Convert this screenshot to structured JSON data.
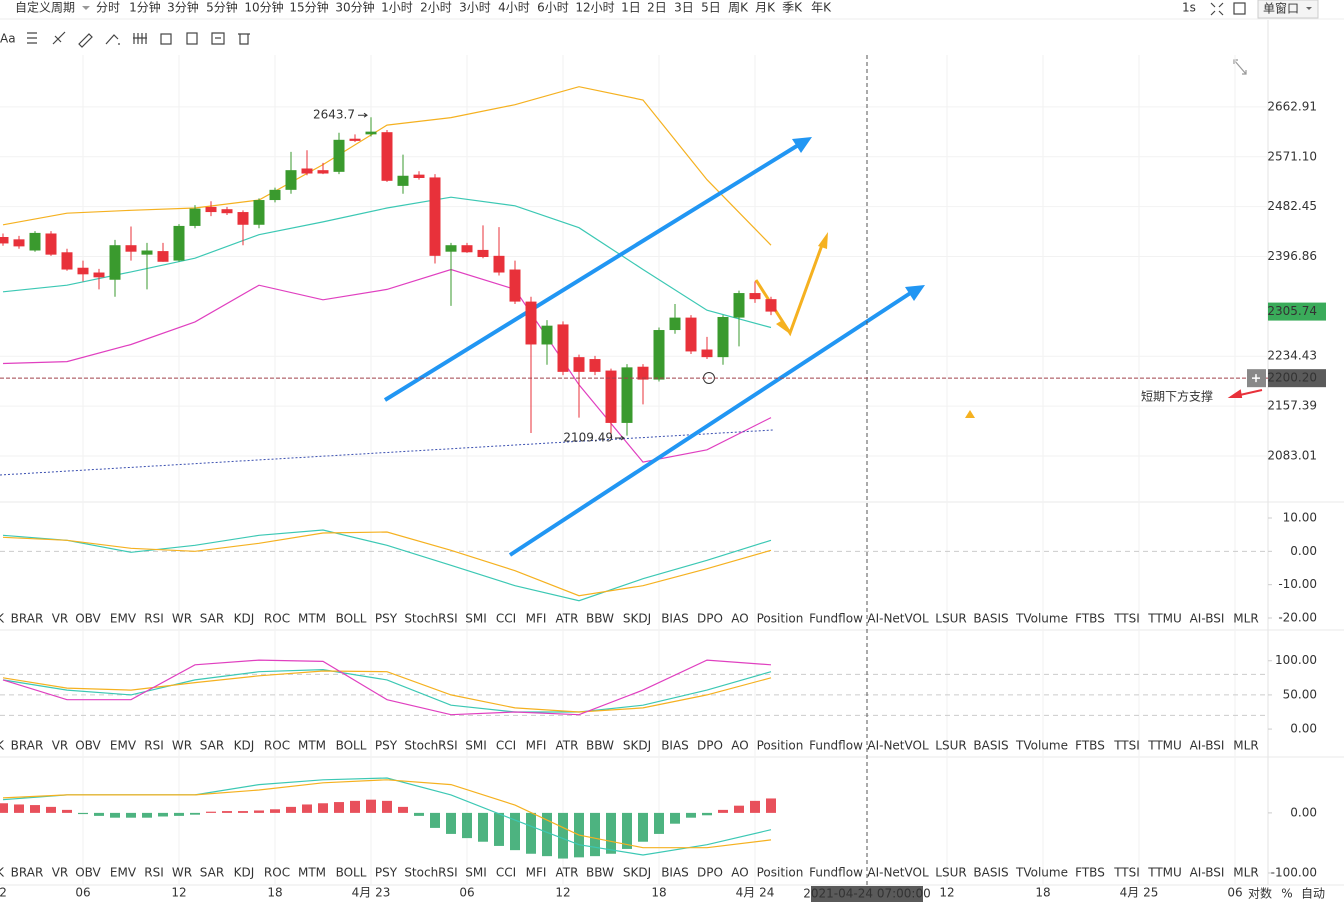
{
  "toolbar": {
    "custom_period": "自定义周期",
    "periods": [
      "分时",
      "1分钟",
      "3分钟",
      "5分钟",
      "10分钟",
      "15分钟",
      "30分钟",
      "1小时",
      "2小时",
      "3小时",
      "4小时",
      "6小时",
      "12小时",
      "1日",
      "2日",
      "3日",
      "5日",
      "周K",
      "月K",
      "季K",
      "年K"
    ],
    "active_period": "1小时",
    "interval": "1s",
    "window": "单窗口",
    "text_tool": "Aa"
  },
  "indicator_tabs": [
    "K",
    "BRAR",
    "VR",
    "OBV",
    "EMV",
    "RSI",
    "WR",
    "SAR",
    "KDJ",
    "ROC",
    "MTM",
    "BOLL",
    "PSY",
    "StochRSI",
    "SMI",
    "CCI",
    "MFI",
    "ATR",
    "BBW",
    "SKDJ",
    "BIAS",
    "DPO",
    "AO",
    "Position",
    "Fundflow",
    "AI-NetVOL",
    "LSUR",
    "BASIS",
    "TVolume",
    "FTBS",
    "TTSI",
    "TTMU",
    "AI-BSI",
    "MLR"
  ],
  "muted_tabs": [
    "KDJ",
    "ROC",
    "AI-NetVOL",
    "AI-BSI"
  ],
  "footer": {
    "log": "对数",
    "percent": "%",
    "auto": "自动"
  },
  "chart_data": [
    {
      "type": "candlestick",
      "log_scale": true,
      "grid": true,
      "up_color": "#3a9a2e",
      "down_color": "#e8313a",
      "xlim": [
        -0.1875,
        79.0625
      ],
      "ylim": [
        2016.6,
        2762
      ],
      "yticks": [
        2662.91,
        {
          "value": 2571.1,
          "label": "2571.10"
        },
        2482.45,
        2396.86,
        2234.43,
        2157.39,
        2083.01
      ],
      "xticks": [
        {
          "value": -1,
          "label": "2"
        },
        {
          "value": 5,
          "label": "06"
        },
        {
          "value": 11,
          "label": "12"
        },
        {
          "value": 17,
          "label": "18"
        },
        {
          "value": 23,
          "label": "4月 23"
        },
        {
          "value": 29,
          "label": "06"
        },
        {
          "value": 35,
          "label": "12"
        },
        {
          "value": 41,
          "label": "18"
        },
        {
          "value": 47,
          "label": "4月 24"
        },
        {
          "value": 59,
          "label": "12"
        },
        {
          "value": 65,
          "label": "18"
        },
        {
          "value": 71,
          "label": "4月 25"
        },
        {
          "value": 77,
          "label": "06"
        }
      ],
      "open": [
        2430,
        2426,
        2407,
        2436,
        2404,
        2378,
        2370,
        2358,
        2416,
        2400,
        2406,
        2390,
        2449,
        2482,
        2478,
        2473,
        2451,
        2494,
        2512,
        2550,
        2547,
        2544,
        2604,
        2612,
        2616,
        2519,
        2539,
        2534,
        2405,
        2416,
        2408,
        2398,
        2375,
        2322,
        2253,
        2285,
        2233,
        2230,
        2212,
        2132,
        2218,
        2198,
        2276,
        2296,
        2245,
        2233,
        2296,
        2336,
        2326
      ],
      "high": [
        2436,
        2432,
        2440,
        2440,
        2410,
        2390,
        2376,
        2425,
        2448,
        2420,
        2420,
        2452,
        2485,
        2492,
        2482,
        2476,
        2497,
        2516,
        2580,
        2583,
        2560,
        2615,
        2612,
        2643.7,
        2620,
        2575,
        2545,
        2540,
        2420,
        2420,
        2450,
        2447,
        2390,
        2330,
        2292,
        2290,
        2237,
        2235,
        2215,
        2222,
        2222,
        2280,
        2318,
        2300,
        2265,
        2300,
        2340,
        2355,
        2330
      ],
      "low": [
        2415,
        2410,
        2405,
        2398,
        2373,
        2355,
        2342,
        2330,
        2390,
        2342,
        2388,
        2388,
        2445,
        2466,
        2468,
        2416,
        2445,
        2490,
        2505,
        2538,
        2540,
        2540,
        2598,
        2608,
        2526,
        2505,
        2530,
        2385,
        2315,
        2403,
        2394,
        2365,
        2318,
        2117,
        2221,
        2205,
        2140,
        2205,
        2109.49,
        2113,
        2160,
        2195,
        2270,
        2238,
        2230,
        2221,
        2250,
        2320,
        2300
      ],
      "close": [
        2419,
        2414,
        2437,
        2400,
        2375,
        2367,
        2362,
        2416,
        2405,
        2407,
        2388,
        2449,
        2479,
        2473,
        2471,
        2451,
        2494,
        2512,
        2547,
        2541,
        2541,
        2602,
        2600,
        2617,
        2528,
        2537,
        2533,
        2398,
        2416,
        2404,
        2396,
        2370,
        2322,
        2253,
        2283,
        2210,
        2210,
        2210,
        2132,
        2217,
        2198,
        2276,
        2296,
        2242,
        2233,
        2297,
        2336,
        2326,
        2305.74
      ],
      "series": [
        {
          "color": "#f5b120",
          "x": [
            0,
            4,
            8,
            12,
            16,
            20,
            24,
            28,
            32,
            36,
            40,
            44,
            48
          ],
          "values": [
            2451,
            2471,
            2476,
            2480,
            2494,
            2557,
            2629,
            2643,
            2667,
            2701,
            2676,
            2530,
            2416
          ]
        },
        {
          "color": "#3cc8b4",
          "x": [
            0,
            4,
            8,
            12,
            16,
            20,
            24,
            28,
            32,
            36,
            40,
            44,
            48
          ],
          "values": [
            2338,
            2349,
            2371,
            2394,
            2434,
            2456,
            2480,
            2499,
            2484,
            2446,
            2375,
            2308,
            2280
          ]
        },
        {
          "color": "#e040c0",
          "x": [
            0,
            4,
            8,
            12,
            16,
            20,
            24,
            28,
            32,
            36,
            40,
            44,
            48
          ],
          "values": [
            2223,
            2226,
            2253,
            2289,
            2349,
            2325,
            2342,
            2375,
            2342,
            2190,
            2074,
            2092,
            2140
          ]
        }
      ],
      "high_label": {
        "x": 23,
        "value": 2643.7
      },
      "low_label": {
        "x": 38,
        "value": 2109.49
      },
      "last_price": 2305.74,
      "crosshair": {
        "x": 54,
        "x_label": "2021-04-24 07:00:00",
        "y": {
          "value": 2200.2,
          "label": "2200.20"
        }
      },
      "support_label": "短期下方支撑"
    },
    {
      "type": "line",
      "active_tab": "ROC",
      "ylim": [
        -20,
        14.8
      ],
      "yticks": [
        {
          "value": 10,
          "label": "10.00"
        },
        {
          "value": 0,
          "label": "0.00"
        },
        {
          "value": -10,
          "label": "-10.00"
        },
        {
          "value": -20,
          "label": "-20.00"
        }
      ],
      "reference_lines": [
        0
      ],
      "series": [
        {
          "color": "#3cc8b4",
          "x": [
            0,
            4,
            8,
            12,
            16,
            20,
            24,
            28,
            32,
            36,
            40,
            44,
            48
          ],
          "values": [
            4.8,
            3.3,
            -0.3,
            1.8,
            4.8,
            6.4,
            1.8,
            -4.2,
            -10.3,
            -14.8,
            -8.2,
            -2.7,
            3.3
          ]
        },
        {
          "color": "#f5b120",
          "x": [
            0,
            4,
            8,
            12,
            16,
            20,
            24,
            28,
            32,
            36,
            40,
            44,
            48
          ],
          "values": [
            4.2,
            3.3,
            0.9,
            0,
            2.4,
            5.5,
            5.8,
            0.3,
            -5.8,
            -13.3,
            -10.3,
            -5.2,
            0.3
          ]
        }
      ]
    },
    {
      "type": "line",
      "active_tab": "KDJ",
      "ylim": [
        -16,
        145
      ],
      "yticks": [
        {
          "value": 100,
          "label": "100.00"
        },
        {
          "value": 50,
          "label": "50.00"
        },
        {
          "value": 0,
          "label": "0.00"
        }
      ],
      "reference_lines": [
        80,
        50,
        20
      ],
      "series": [
        {
          "color": "#3cc8b4",
          "x": [
            0,
            4,
            8,
            12,
            16,
            20,
            24,
            28,
            32,
            36,
            40,
            44,
            48
          ],
          "values": [
            72,
            57,
            50,
            72,
            84,
            87,
            72,
            35,
            25,
            25,
            35,
            57,
            84
          ]
        },
        {
          "color": "#f5b120",
          "x": [
            0,
            4,
            8,
            12,
            16,
            20,
            24,
            28,
            32,
            36,
            40,
            44,
            48
          ],
          "values": [
            75,
            60,
            57,
            68,
            78,
            85,
            84,
            50,
            31,
            25,
            31,
            50,
            75
          ]
        },
        {
          "color": "#e040c0",
          "x": [
            0,
            4,
            8,
            12,
            16,
            20,
            24,
            28,
            32,
            36,
            40,
            44,
            48
          ],
          "values": [
            72,
            43,
            43,
            94,
            101,
            99,
            43,
            21,
            25,
            21,
            57,
            101,
            94
          ]
        }
      ]
    },
    {
      "type": "macd",
      "ylim": [
        -120,
        88
      ],
      "up_color": "#e8505b",
      "down_color": "#4db380",
      "yticks": [
        {
          "value": 0,
          "label": "0.00"
        },
        {
          "value": -100,
          "label": "-100.00"
        }
      ],
      "histogram": [
        16,
        14,
        13,
        10,
        5,
        -2,
        -5,
        -8,
        -8,
        -8,
        -6,
        -5,
        -3,
        2,
        3,
        3,
        4,
        6,
        10,
        14,
        16,
        18,
        20,
        22,
        20,
        10,
        -5,
        -25,
        -35,
        -42,
        -48,
        -55,
        -62,
        -68,
        -72,
        -76,
        -74,
        -72,
        -68,
        -60,
        -48,
        -35,
        -18,
        -8,
        -4,
        5,
        12,
        20,
        24
      ],
      "series": [
        {
          "color": "#3cc8b4",
          "x": [
            0,
            4,
            8,
            12,
            16,
            20,
            24,
            28,
            32,
            36,
            40,
            44,
            48
          ],
          "values": [
            22,
            30,
            30,
            30,
            47,
            55,
            58,
            30,
            -12,
            -53,
            -70,
            -53,
            -28
          ]
        },
        {
          "color": "#f5b120",
          "x": [
            0,
            4,
            8,
            12,
            16,
            20,
            24,
            28,
            32,
            36,
            40,
            44,
            48
          ],
          "values": [
            25,
            30,
            30,
            30,
            38,
            50,
            55,
            47,
            13,
            -37,
            -58,
            -58,
            -45
          ]
        }
      ]
    }
  ]
}
